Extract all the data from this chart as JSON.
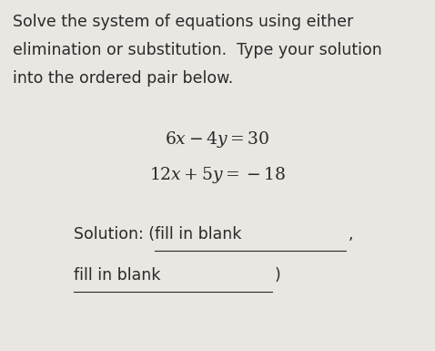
{
  "background_color": "#eae6e2",
  "text_color": "#2a2a2a",
  "instruction_line1": "Solve the system of equations using either",
  "instruction_line2": "elimination or substitution.  Type your solution",
  "instruction_line3": "into the ordered pair below.",
  "eq1": "$6x - 4y = 30$",
  "eq2": "$12x + 5y = -18$",
  "solution_label": "Solution: (fill in blank",
  "blank1_text": "fill in blank",
  "comma": ",",
  "close_paren": ")",
  "instruction_fontsize": 12.5,
  "eq_fontsize": 13.5,
  "solution_fontsize": 12.5
}
